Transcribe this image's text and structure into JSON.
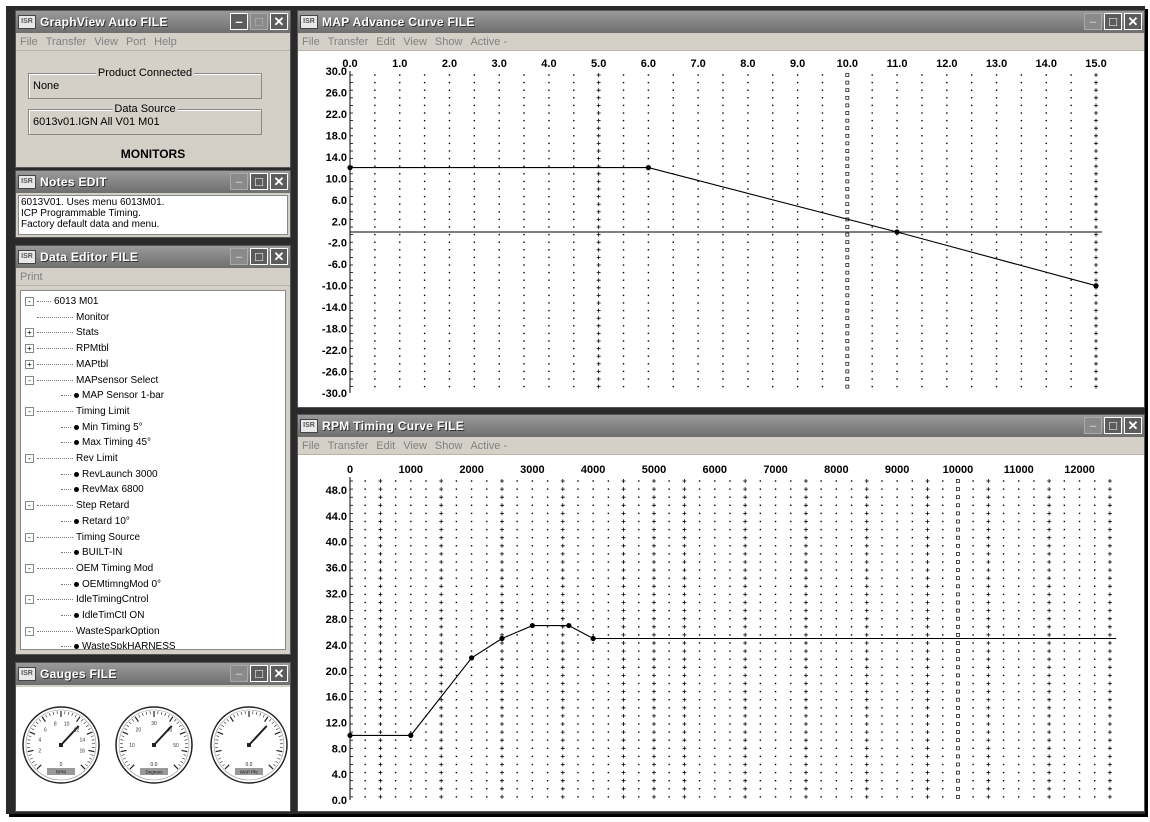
{
  "graphview": {
    "title": "GraphView Auto FILE",
    "menu": [
      "File",
      "Transfer",
      "View",
      "Port",
      "Help"
    ],
    "product_connected_label": "Product Connected",
    "product_connected_value": "None",
    "data_source_label": "Data Source",
    "data_source_value": "6013v01.IGN All V01 M01",
    "monitors_label": "MONITORS"
  },
  "notes": {
    "title": "Notes  EDIT",
    "lines": [
      "6013V01.  Uses menu 6013M01.",
      "ICP Programmable Timing.",
      "Factory default data and menu."
    ]
  },
  "data_editor": {
    "title": "Data Editor  FILE",
    "menu": [
      "Print"
    ],
    "tree": [
      {
        "label": "6013 M01",
        "level": 0,
        "exp": "-"
      },
      {
        "label": "Monitor",
        "level": 1,
        "exp": ""
      },
      {
        "label": "Stats",
        "level": 1,
        "exp": "+"
      },
      {
        "label": "RPMtbl",
        "level": 1,
        "exp": "+"
      },
      {
        "label": "MAPtbl",
        "level": 1,
        "exp": "+"
      },
      {
        "label": "MAPsensor Select",
        "level": 1,
        "exp": "-"
      },
      {
        "label": "MAP Sensor 1-bar",
        "level": 2,
        "exp": ""
      },
      {
        "label": "Timing Limit",
        "level": 1,
        "exp": "-"
      },
      {
        "label": "Min Timing  5°",
        "level": 2,
        "exp": ""
      },
      {
        "label": "Max Timing  45°",
        "level": 2,
        "exp": ""
      },
      {
        "label": "Rev Limit",
        "level": 1,
        "exp": "-"
      },
      {
        "label": "RevLaunch  3000",
        "level": 2,
        "exp": ""
      },
      {
        "label": "RevMax  6800",
        "level": 2,
        "exp": ""
      },
      {
        "label": "Step Retard",
        "level": 1,
        "exp": "-"
      },
      {
        "label": "Retard 10°",
        "level": 2,
        "exp": ""
      },
      {
        "label": "Timing Source",
        "level": 1,
        "exp": "-"
      },
      {
        "label": "BUILT-IN",
        "level": 2,
        "exp": ""
      },
      {
        "label": "OEM Timing Mod",
        "level": 1,
        "exp": "-"
      },
      {
        "label": "OEMtimngMod  0°",
        "level": 2,
        "exp": ""
      },
      {
        "label": "IdleTimingCntrol",
        "level": 1,
        "exp": "-"
      },
      {
        "label": "IdleTimCtl ON",
        "level": 2,
        "exp": ""
      },
      {
        "label": "WasteSparkOption",
        "level": 1,
        "exp": "-"
      },
      {
        "label": "WasteSpkHARNESS",
        "level": 2,
        "exp": ""
      }
    ]
  },
  "gauges": {
    "title": "Gauges  FILE",
    "items": [
      {
        "value": "0",
        "unit": "RPM",
        "ticks": [
          "2",
          "4",
          "6",
          "8",
          "10",
          "12",
          "14",
          "16"
        ]
      },
      {
        "value": "0.0",
        "unit": "Degrees",
        "ticks": [
          "10",
          "20",
          "30",
          "40",
          "50"
        ]
      },
      {
        "value": "0.0",
        "unit": "MAP Pfe",
        "ticks": []
      }
    ]
  },
  "map_curve": {
    "title": "MAP Advance Curve  FILE",
    "menu": [
      "File",
      "Transfer",
      "Edit",
      "View",
      "Show",
      "Active -"
    ]
  },
  "rpm_curve": {
    "title": "RPM Timing Curve  FILE",
    "menu": [
      "File",
      "Transfer",
      "Edit",
      "View",
      "Show",
      "Active -"
    ]
  },
  "chart_data": [
    {
      "type": "line",
      "x_tick_labels": [
        "0.0",
        "1.0",
        "2.0",
        "3.0",
        "4.0",
        "5.0",
        "6.0",
        "7.0",
        "8.0",
        "9.0",
        "10.0",
        "11.0",
        "12.0",
        "13.0",
        "14.0",
        "15.0"
      ],
      "y_tick_labels": [
        "30.0",
        "26.0",
        "22.0",
        "18.0",
        "14.0",
        "10.0",
        "6.0",
        "2.0",
        "-2.0",
        "-6.0",
        "-10.0",
        "-14.0",
        "-18.0",
        "-22.0",
        "-26.0",
        "-30.0"
      ],
      "xlim": [
        0,
        15
      ],
      "ylim": [
        -30,
        30
      ],
      "series": [
        {
          "x": [
            0,
            6,
            11,
            15
          ],
          "y": [
            12,
            12,
            0,
            -10
          ]
        }
      ],
      "reference_lines_y": [
        0
      ],
      "grid": true
    },
    {
      "type": "line",
      "x_tick_labels": [
        "0",
        "1000",
        "2000",
        "3000",
        "4000",
        "5000",
        "6000",
        "7000",
        "8000",
        "9000",
        "10000",
        "11000",
        "12000"
      ],
      "y_tick_labels": [
        "48.0",
        "44.0",
        "40.0",
        "36.0",
        "32.0",
        "28.0",
        "24.0",
        "20.0",
        "16.0",
        "12.0",
        "8.0",
        "4.0",
        "0.0"
      ],
      "xlim": [
        0,
        12600
      ],
      "ylim": [
        0,
        50
      ],
      "series": [
        {
          "x": [
            0,
            1000,
            2000,
            2500,
            3000,
            3600,
            4000,
            12600
          ],
          "y": [
            10,
            10,
            22,
            25,
            27,
            27,
            25,
            25
          ]
        }
      ],
      "grid": true
    }
  ]
}
